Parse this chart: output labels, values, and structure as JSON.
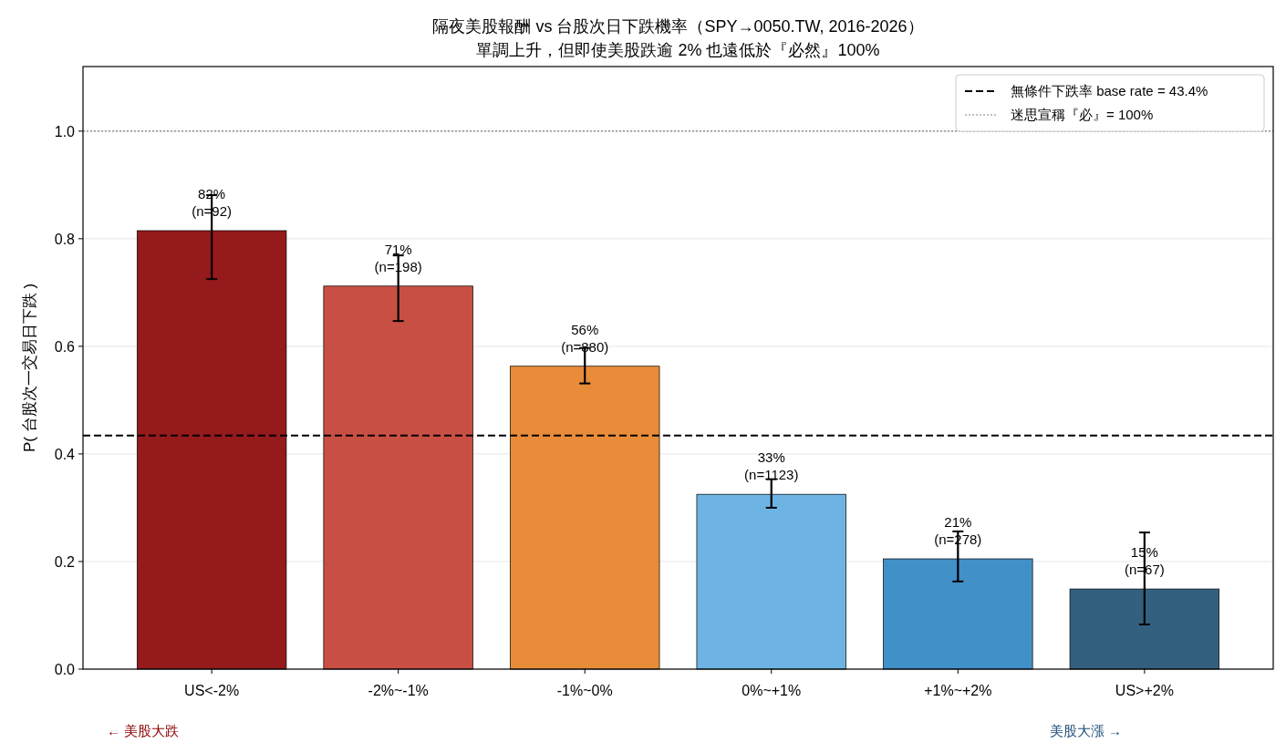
{
  "chart_data": {
    "type": "bar",
    "title": "隔夜美股報酬 vs 台股次日下跌機率（SPY→0050.TW, 2016-2026）",
    "subtitle": "單調上升，但即使美股跌逾 2% 也遠低於『必然』100%",
    "ylabel": "P( 台股次一交易日下跌 )",
    "categories": [
      "US<-2%",
      "-2%~-1%",
      "-1%~0%",
      "0%~+1%",
      "+1%~+2%",
      "US>+2%"
    ],
    "values": [
      0.815,
      0.712,
      0.563,
      0.325,
      0.205,
      0.149
    ],
    "colors": [
      "#941a1c",
      "#c84f43",
      "#e88c3a",
      "#6db4e4",
      "#4290c8",
      "#33607f"
    ],
    "errors": [
      [
        0.725,
        0.881
      ],
      [
        0.647,
        0.769
      ],
      [
        0.531,
        0.597
      ],
      [
        0.3,
        0.353
      ],
      [
        0.163,
        0.256
      ],
      [
        0.083,
        0.254
      ]
    ],
    "value_labels": [
      "82%\n(n=92)",
      "71%\n(n=198)",
      "56%\n(n=880)",
      "33%\n(n=1123)",
      "21%\n(n=278)",
      "15%\n(n=67)"
    ],
    "ylim": [
      0,
      1.12
    ],
    "yticks": [
      {
        "value": 0,
        "label": "0.0"
      },
      0.2,
      0.4,
      0.6,
      0.8,
      {
        "value": 1,
        "label": "1.0"
      }
    ],
    "ref_lines": [
      {
        "axis": "y",
        "value": 0.434,
        "label": "無條件下跌率 base rate = 43.4%",
        "color": "#000000",
        "line_style": "dashed"
      },
      {
        "axis": "y",
        "value": 1.0,
        "label": "迷思宣稱『必』= 100%",
        "color": "#808080",
        "line_style": "dotted"
      }
    ],
    "grid": "y",
    "legend": "top right",
    "annotations": [
      "← 美股大跌",
      "美股大漲 →"
    ]
  }
}
